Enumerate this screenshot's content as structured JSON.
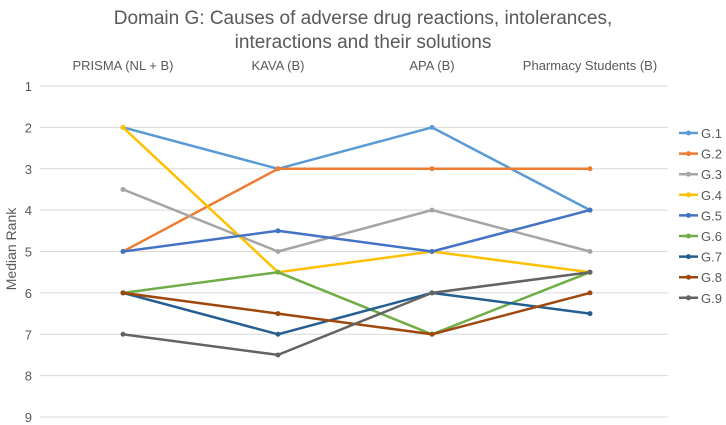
{
  "chart_data": {
    "type": "line",
    "title_lines": [
      "Domain G: Causes of adverse drug reactions, intolerances,",
      "interactions and their solutions"
    ],
    "categories": [
      "PRISMA (NL + B)",
      "KAVA (B)",
      "APA (B)",
      "Pharmacy Students (B)"
    ],
    "ylabel": "Median Rank",
    "xlabel": "",
    "ylim": [
      1,
      9
    ],
    "y_inverted": true,
    "y_ticks": [
      "1",
      "2",
      "3",
      "4",
      "5",
      "6",
      "7",
      "8",
      "9"
    ],
    "grid": true,
    "legend_position": "right",
    "series": [
      {
        "name": "G.1",
        "color": "#5b9bd5",
        "values": [
          2,
          3,
          2,
          4
        ]
      },
      {
        "name": "G.2",
        "color": "#ed7d31",
        "values": [
          5,
          3,
          3,
          3
        ]
      },
      {
        "name": "G.3",
        "color": "#a5a5a5",
        "values": [
          3.5,
          5,
          4,
          5
        ]
      },
      {
        "name": "G.4",
        "color": "#ffc000",
        "values": [
          2,
          5.5,
          5,
          5.5
        ]
      },
      {
        "name": "G.5",
        "color": "#4472c4",
        "values": [
          5,
          4.5,
          5,
          4
        ]
      },
      {
        "name": "G.6",
        "color": "#70ad47",
        "values": [
          6,
          5.5,
          7,
          5.5
        ]
      },
      {
        "name": "G.7",
        "color": "#255e91",
        "values": [
          6,
          7,
          6,
          6.5
        ]
      },
      {
        "name": "G.8",
        "color": "#9e480e",
        "values": [
          6,
          6.5,
          7,
          6
        ]
      },
      {
        "name": "G.9",
        "color": "#636363",
        "values": [
          7,
          7.5,
          6,
          5.5
        ]
      }
    ]
  }
}
